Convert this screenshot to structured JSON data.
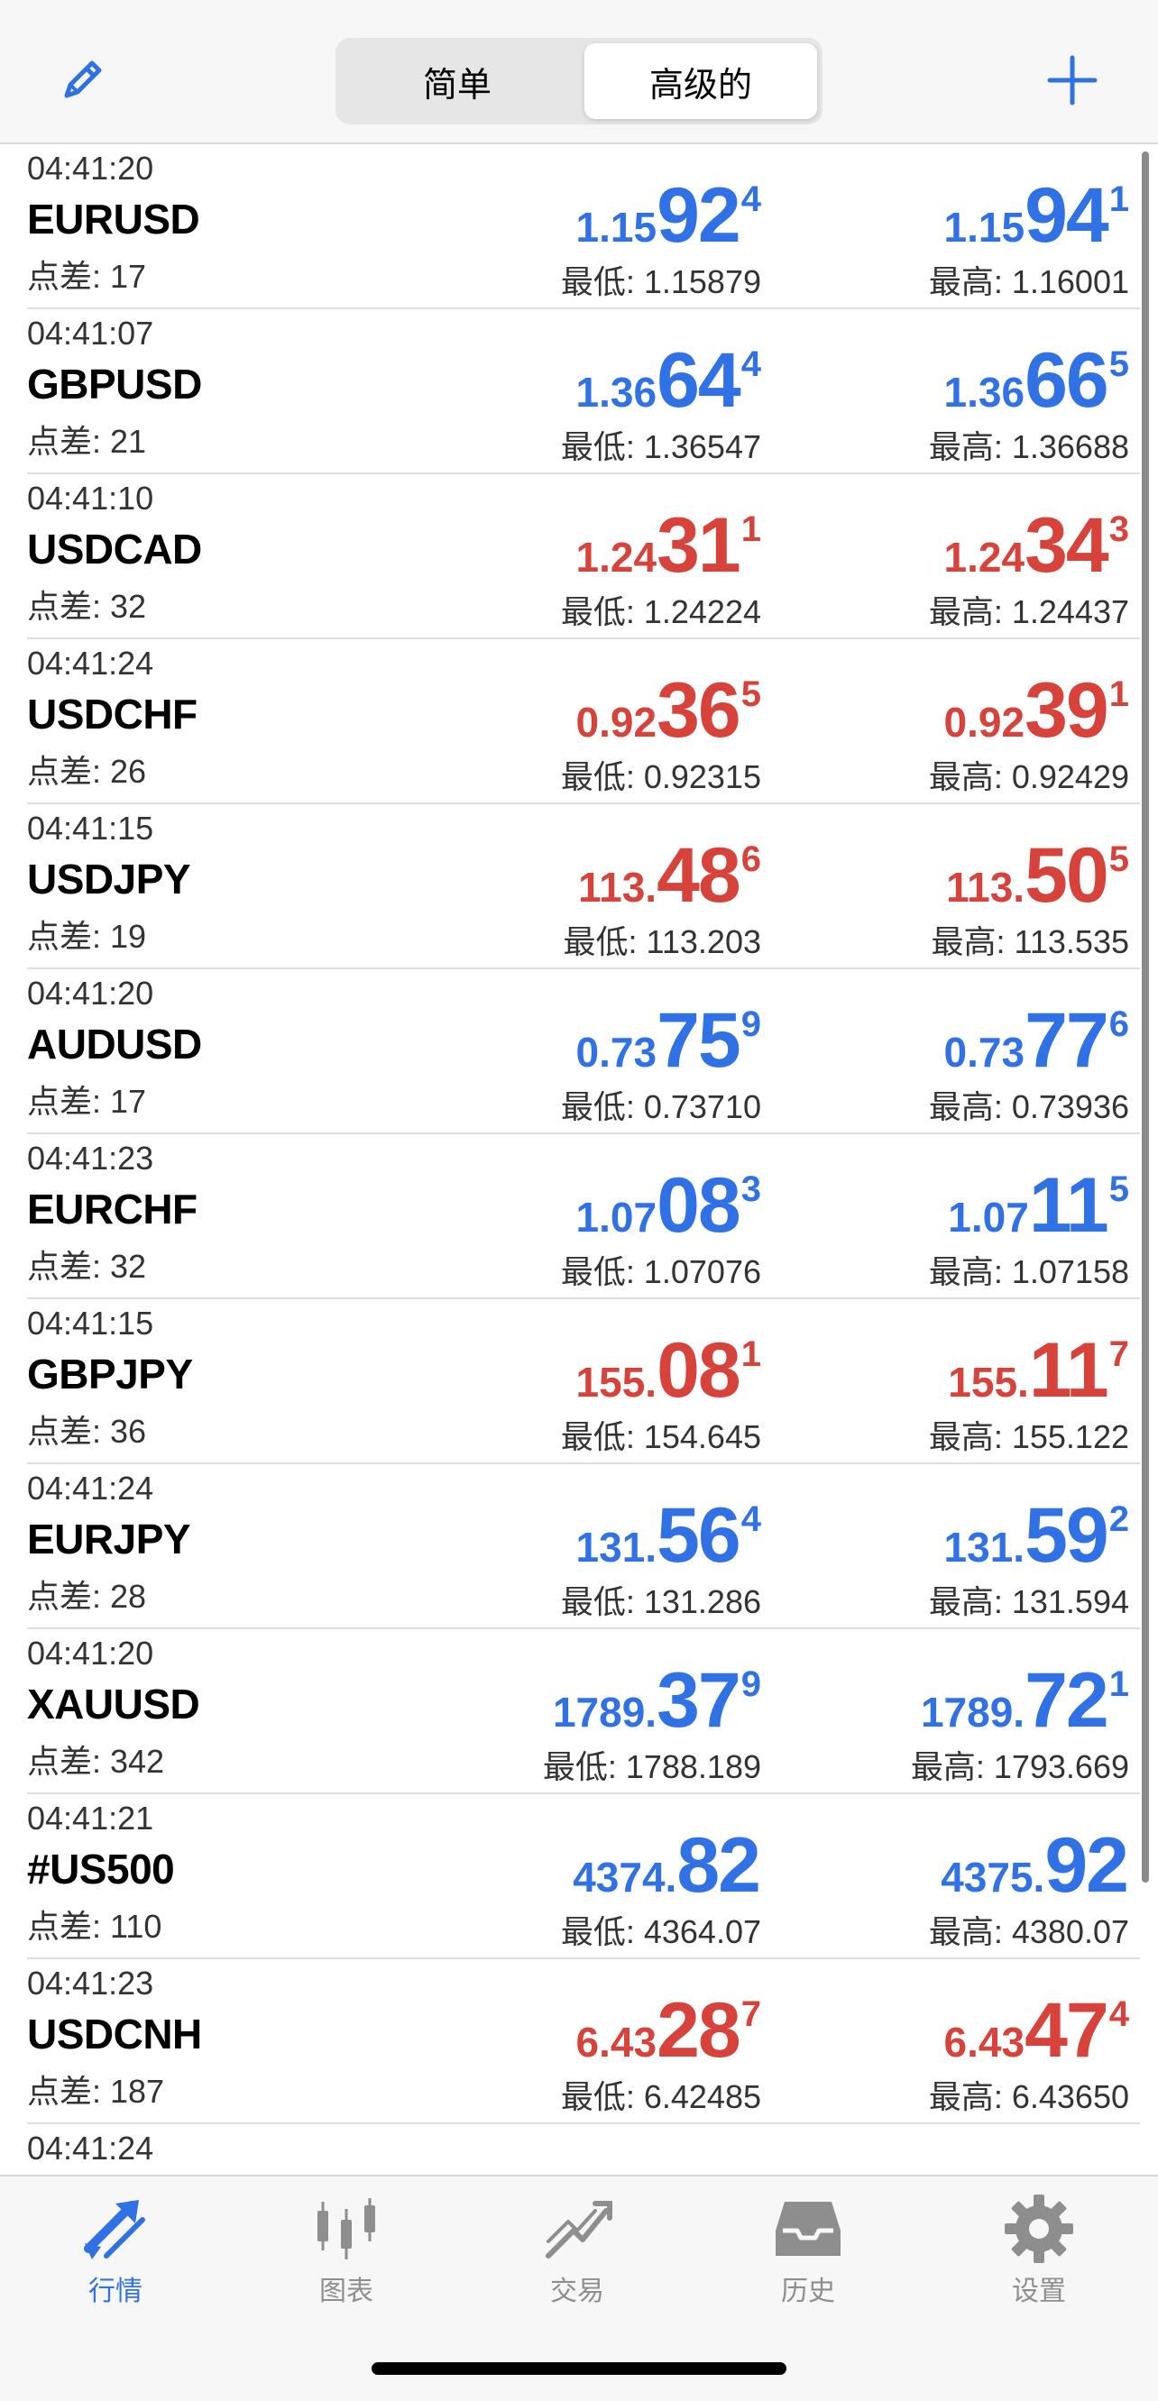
{
  "header": {
    "segments": [
      "简单",
      "高级的"
    ],
    "active_segment": "高级的"
  },
  "quotes": [
    {
      "time": "04:41:20",
      "symbol": "EURUSD",
      "spread": "点差: 17",
      "dir": "up",
      "bid": {
        "small": "1.15",
        "big": "92",
        "sup": "4"
      },
      "ask": {
        "small": "1.15",
        "big": "94",
        "sup": "1"
      },
      "low": "最低: 1.15879",
      "high": "最高: 1.16001"
    },
    {
      "time": "04:41:07",
      "symbol": "GBPUSD",
      "spread": "点差: 21",
      "dir": "up",
      "bid": {
        "small": "1.36",
        "big": "64",
        "sup": "4"
      },
      "ask": {
        "small": "1.36",
        "big": "66",
        "sup": "5"
      },
      "low": "最低: 1.36547",
      "high": "最高: 1.36688"
    },
    {
      "time": "04:41:10",
      "symbol": "USDCAD",
      "spread": "点差: 32",
      "dir": "down",
      "bid": {
        "small": "1.24",
        "big": "31",
        "sup": "1"
      },
      "ask": {
        "small": "1.24",
        "big": "34",
        "sup": "3"
      },
      "low": "最低: 1.24224",
      "high": "最高: 1.24437"
    },
    {
      "time": "04:41:24",
      "symbol": "USDCHF",
      "spread": "点差: 26",
      "dir": "down",
      "bid": {
        "small": "0.92",
        "big": "36",
        "sup": "5"
      },
      "ask": {
        "small": "0.92",
        "big": "39",
        "sup": "1"
      },
      "low": "最低: 0.92315",
      "high": "最高: 0.92429"
    },
    {
      "time": "04:41:15",
      "symbol": "USDJPY",
      "spread": "点差: 19",
      "dir": "down",
      "bid": {
        "small": "113.",
        "big": "48",
        "sup": "6"
      },
      "ask": {
        "small": "113.",
        "big": "50",
        "sup": "5"
      },
      "low": "最低: 113.203",
      "high": "最高: 113.535"
    },
    {
      "time": "04:41:20",
      "symbol": "AUDUSD",
      "spread": "点差: 17",
      "dir": "up",
      "bid": {
        "small": "0.73",
        "big": "75",
        "sup": "9"
      },
      "ask": {
        "small": "0.73",
        "big": "77",
        "sup": "6"
      },
      "low": "最低: 0.73710",
      "high": "最高: 0.73936"
    },
    {
      "time": "04:41:23",
      "symbol": "EURCHF",
      "spread": "点差: 32",
      "dir": "up",
      "bid": {
        "small": "1.07",
        "big": "08",
        "sup": "3"
      },
      "ask": {
        "small": "1.07",
        "big": "11",
        "sup": "5"
      },
      "low": "最低: 1.07076",
      "high": "最高: 1.07158"
    },
    {
      "time": "04:41:15",
      "symbol": "GBPJPY",
      "spread": "点差: 36",
      "dir": "down",
      "bid": {
        "small": "155.",
        "big": "08",
        "sup": "1"
      },
      "ask": {
        "small": "155.",
        "big": "11",
        "sup": "7"
      },
      "low": "最低: 154.645",
      "high": "最高: 155.122"
    },
    {
      "time": "04:41:24",
      "symbol": "EURJPY",
      "spread": "点差: 28",
      "dir": "up",
      "bid": {
        "small": "131.",
        "big": "56",
        "sup": "4"
      },
      "ask": {
        "small": "131.",
        "big": "59",
        "sup": "2"
      },
      "low": "最低: 131.286",
      "high": "最高: 131.594"
    },
    {
      "time": "04:41:20",
      "symbol": "XAUUSD",
      "spread": "点差: 342",
      "dir": "up",
      "bid": {
        "small": "1789.",
        "big": "37",
        "sup": "9"
      },
      "ask": {
        "small": "1789.",
        "big": "72",
        "sup": "1"
      },
      "low": "最低: 1788.189",
      "high": "最高: 1793.669"
    },
    {
      "time": "04:41:21",
      "symbol": "#US500",
      "spread": "点差: 110",
      "dir": "up",
      "bid": {
        "small": "4374.",
        "big": "82",
        "sup": ""
      },
      "ask": {
        "small": "4375.",
        "big": "92",
        "sup": ""
      },
      "low": "最低: 4364.07",
      "high": "最高: 4380.07"
    },
    {
      "time": "04:41:23",
      "symbol": "USDCNH",
      "spread": "点差: 187",
      "dir": "down",
      "bid": {
        "small": "6.43",
        "big": "28",
        "sup": "7"
      },
      "ask": {
        "small": "6.43",
        "big": "47",
        "sup": "4"
      },
      "low": "最低: 6.42485",
      "high": "最高: 6.43650"
    },
    {
      "time": "04:41:24",
      "symbol": "",
      "spread": "",
      "dir": "down",
      "bid": {
        "small": "",
        "big": "",
        "sup": ""
      },
      "ask": {
        "small": "",
        "big": "",
        "sup": ""
      },
      "low": "",
      "high": ""
    }
  ],
  "tabbar": {
    "items": [
      {
        "label": "行情",
        "icon": "quotes-arrows-icon",
        "active": true
      },
      {
        "label": "图表",
        "icon": "candlestick-chart-icon",
        "active": false
      },
      {
        "label": "交易",
        "icon": "trade-chart-icon",
        "active": false
      },
      {
        "label": "历史",
        "icon": "history-inbox-icon",
        "active": false
      },
      {
        "label": "设置",
        "icon": "gear-icon",
        "active": false
      }
    ]
  },
  "colors": {
    "up": "#3072e6",
    "down": "#d7423a",
    "accent": "#3072e6"
  }
}
